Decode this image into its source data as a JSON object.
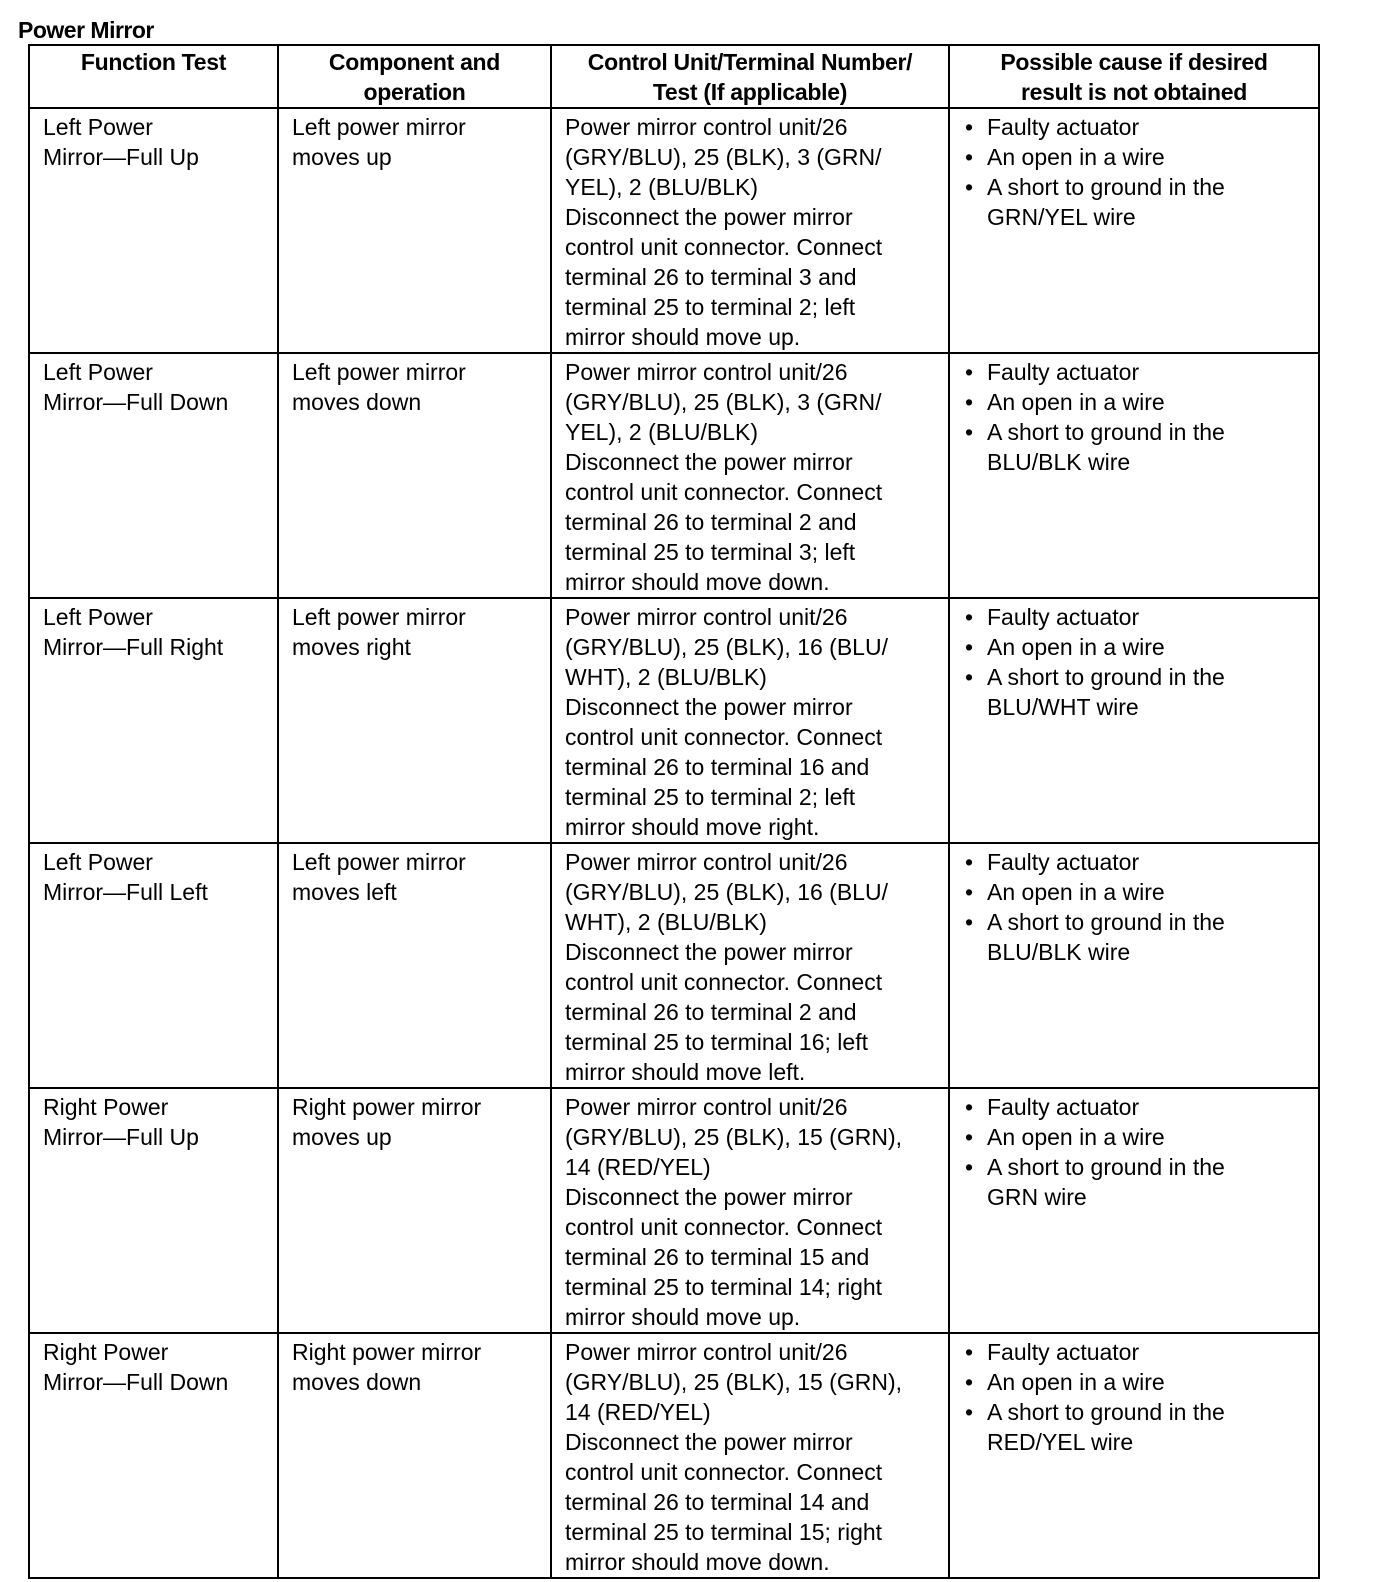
{
  "title": "Power Mirror",
  "headers": [
    [
      "Function Test"
    ],
    [
      "Component and",
      "operation"
    ],
    [
      "Control Unit/Terminal Number/",
      "Test (If applicable)"
    ],
    [
      "Possible cause if desired",
      "result is not obtained"
    ]
  ],
  "rows": [
    {
      "function": [
        "Left Power",
        "Mirror—Full Up"
      ],
      "component": [
        "Left power mirror",
        "moves up"
      ],
      "test": [
        "Power mirror control unit/26",
        "(GRY/BLU), 25 (BLK), 3 (GRN/",
        "YEL), 2 (BLU/BLK)",
        "Disconnect the power mirror",
        "control unit connector. Connect",
        "terminal 26 to terminal 3 and",
        "terminal 25 to terminal 2; left",
        "mirror should move up."
      ],
      "causes": [
        [
          "Faulty actuator"
        ],
        [
          "An open in a wire"
        ],
        [
          "A short to ground in the",
          "GRN/YEL wire"
        ]
      ]
    },
    {
      "function": [
        "Left Power",
        "Mirror—Full Down"
      ],
      "component": [
        "Left power mirror",
        "moves down"
      ],
      "test": [
        "Power mirror control unit/26",
        "(GRY/BLU), 25 (BLK), 3 (GRN/",
        "YEL), 2 (BLU/BLK)",
        "Disconnect the power mirror",
        "control unit connector. Connect",
        "terminal 26 to terminal 2 and",
        "terminal 25 to terminal 3; left",
        "mirror should move down."
      ],
      "causes": [
        [
          "Faulty actuator"
        ],
        [
          "An open in a wire"
        ],
        [
          "A short to ground in the",
          "BLU/BLK wire"
        ]
      ]
    },
    {
      "function": [
        "Left Power",
        "Mirror—Full Right"
      ],
      "component": [
        "Left power mirror",
        "moves right"
      ],
      "test": [
        "Power mirror control unit/26",
        "(GRY/BLU), 25 (BLK), 16 (BLU/",
        "WHT), 2 (BLU/BLK)",
        "Disconnect the power mirror",
        "control unit connector. Connect",
        "terminal 26 to terminal 16 and",
        "terminal 25 to terminal 2; left",
        "mirror should move right."
      ],
      "causes": [
        [
          "Faulty actuator"
        ],
        [
          "An open in a wire"
        ],
        [
          "A short to ground in the",
          "BLU/WHT wire"
        ]
      ]
    },
    {
      "function": [
        "Left Power",
        "Mirror—Full Left"
      ],
      "component": [
        "Left power mirror",
        "moves left"
      ],
      "test": [
        "Power mirror control unit/26",
        "(GRY/BLU), 25 (BLK), 16 (BLU/",
        "WHT), 2 (BLU/BLK)",
        "Disconnect the power mirror",
        "control unit connector. Connect",
        "terminal 26 to terminal 2 and",
        "terminal 25 to terminal 16; left",
        "mirror should move left."
      ],
      "causes": [
        [
          "Faulty actuator"
        ],
        [
          "An open in a wire"
        ],
        [
          "A short to ground in the",
          "BLU/BLK wire"
        ]
      ]
    },
    {
      "function": [
        "Right Power",
        "Mirror—Full Up"
      ],
      "component": [
        "Right power mirror",
        "moves up"
      ],
      "test": [
        "Power mirror control unit/26",
        "(GRY/BLU), 25 (BLK), 15 (GRN),",
        "14 (RED/YEL)",
        "Disconnect the power mirror",
        "control unit connector. Connect",
        "terminal 26 to terminal 15 and",
        "terminal 25 to terminal 14; right",
        "mirror should move up."
      ],
      "causes": [
        [
          "Faulty actuator"
        ],
        [
          "An open in a wire"
        ],
        [
          "A short to ground in the",
          "GRN wire"
        ]
      ]
    },
    {
      "function": [
        "Right Power",
        "Mirror—Full Down"
      ],
      "component": [
        "Right power mirror",
        "moves down"
      ],
      "test": [
        "Power mirror control unit/26",
        "(GRY/BLU), 25 (BLK), 15 (GRN),",
        "14 (RED/YEL)",
        "Disconnect the power mirror",
        "control unit connector. Connect",
        "terminal 26 to terminal 14 and",
        "terminal 25 to terminal 15; right",
        "mirror should move down."
      ],
      "causes": [
        [
          "Faulty actuator"
        ],
        [
          "An open in a wire"
        ],
        [
          "A short to ground in the",
          "RED/YEL wire"
        ]
      ]
    }
  ]
}
